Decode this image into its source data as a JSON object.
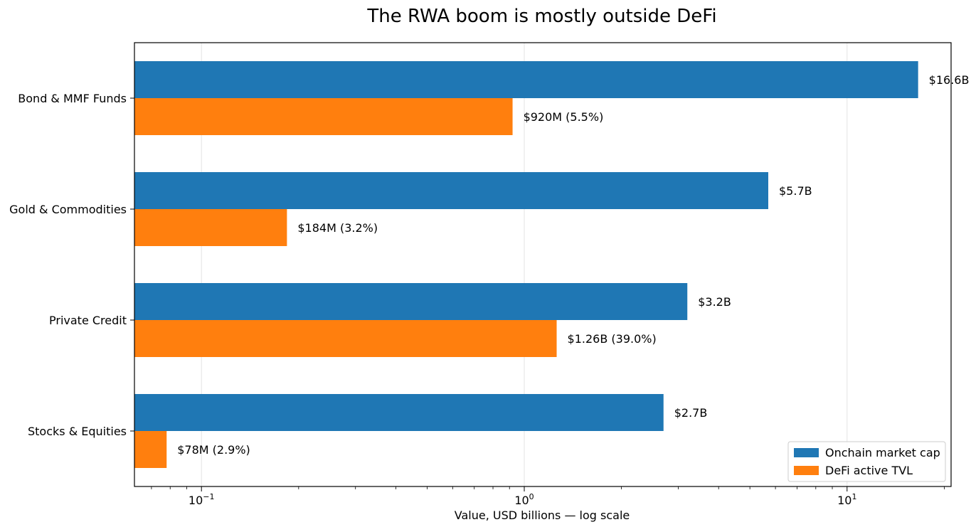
{
  "chart_data": {
    "type": "bar",
    "orientation": "horizontal",
    "title": "The RWA boom is mostly outside DeFi",
    "xlabel": "Value, USD billions — log scale",
    "ylabel": "",
    "xscale": "log",
    "xlim": [
      0.062,
      21.0
    ],
    "xticks": [
      {
        "value": 0.1,
        "base": "10",
        "exp": "−1"
      },
      {
        "value": 1,
        "base": "10",
        "exp": "0"
      },
      {
        "value": 10,
        "base": "10",
        "exp": "1"
      }
    ],
    "grid": "vertical-major",
    "legend_position": "lower-right",
    "categories": [
      "Bond & MMF Funds",
      "Gold & Commodities",
      "Private Credit",
      "Stocks & Equities"
    ],
    "series": [
      {
        "name": "Onchain market cap",
        "color": "#1f77b4",
        "values": [
          16.6,
          5.7,
          3.2,
          2.7
        ],
        "labels": [
          "$16.6B",
          "$5.7B",
          "$3.2B",
          "$2.7B"
        ]
      },
      {
        "name": "DeFi active TVL",
        "color": "#ff7f0e",
        "values": [
          0.92,
          0.184,
          1.26,
          0.078
        ],
        "labels": [
          "$920M (5.5%)",
          "$184M (3.2%)",
          "$1.26B (39.0%)",
          "$78M (2.9%)"
        ]
      }
    ]
  }
}
